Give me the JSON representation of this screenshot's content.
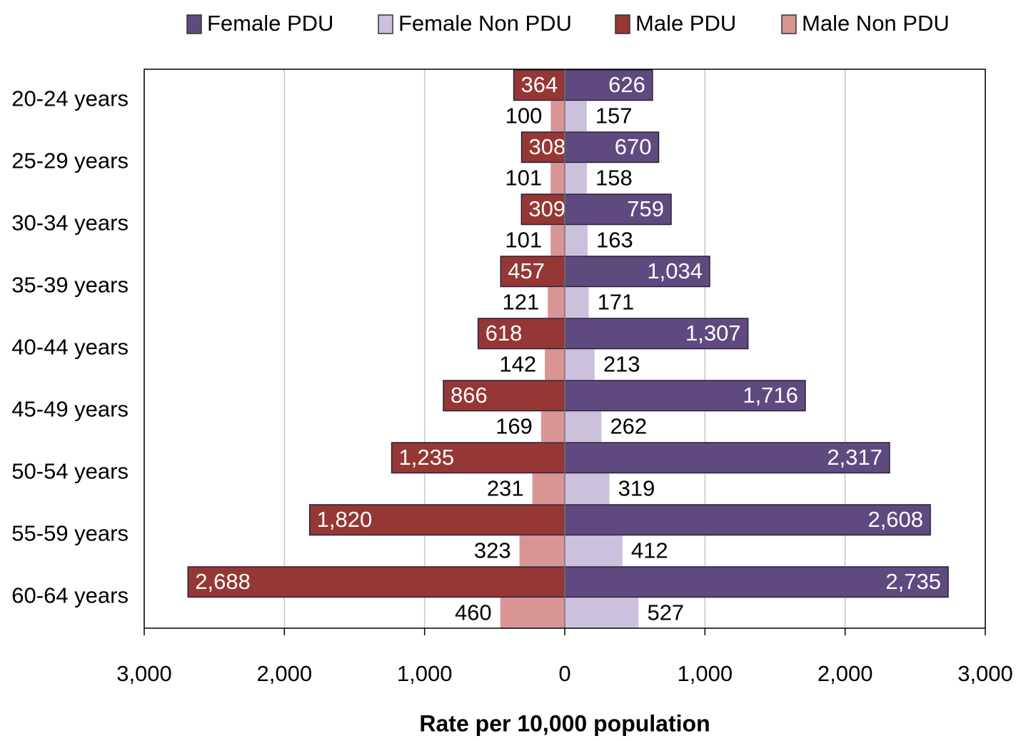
{
  "chart_data": {
    "type": "bar",
    "orientation": "horizontal",
    "x_label": "Rate per 10,000 population",
    "categories": [
      "20-24 years",
      "25-29 years",
      "30-34 years",
      "35-39 years",
      "40-44 years",
      "45-49 years",
      "50-54 years",
      "55-59 years",
      "60-64 years"
    ],
    "series": [
      {
        "name": "Female PDU",
        "color": "#5f4a80",
        "values": [
          626,
          670,
          759,
          1034,
          1307,
          1716,
          2317,
          2608,
          2735
        ],
        "value_labels": [
          "626",
          "670",
          "759",
          "1,034",
          "1,307",
          "1,716",
          "2,317",
          "2,608",
          "2,735"
        ]
      },
      {
        "name": "Female Non PDU",
        "color": "#ccc1dd",
        "values": [
          157,
          158,
          163,
          171,
          213,
          262,
          319,
          412,
          527
        ]
      },
      {
        "name": "Male PDU",
        "color": "#953735",
        "values": [
          -364,
          -308,
          -309,
          -457,
          -618,
          -866,
          -1235,
          -1820,
          -2688
        ],
        "value_labels": [
          "364",
          "308",
          "309",
          "457",
          "618",
          "866",
          "1,235",
          "1,820",
          "2,688"
        ]
      },
      {
        "name": "Male Non PDU",
        "color": "#d99594",
        "values": [
          -100,
          -101,
          -101,
          -121,
          -142,
          -169,
          -231,
          -323,
          -460
        ],
        "value_labels": [
          "100",
          "101",
          "101",
          "121",
          "142",
          "169",
          "231",
          "323",
          "460"
        ]
      }
    ],
    "xlim": [
      -3000,
      3000
    ],
    "xticks": [
      {
        "value": -3000,
        "label": "3,000"
      },
      {
        "value": -2000,
        "label": "2,000"
      },
      {
        "value": -1000,
        "label": "1,000"
      },
      0,
      {
        "value": 1000,
        "label": "1,000"
      },
      {
        "value": 2000,
        "label": "2,000"
      },
      {
        "value": 3000,
        "label": "3,000"
      }
    ],
    "grid": true,
    "legend": "top"
  }
}
